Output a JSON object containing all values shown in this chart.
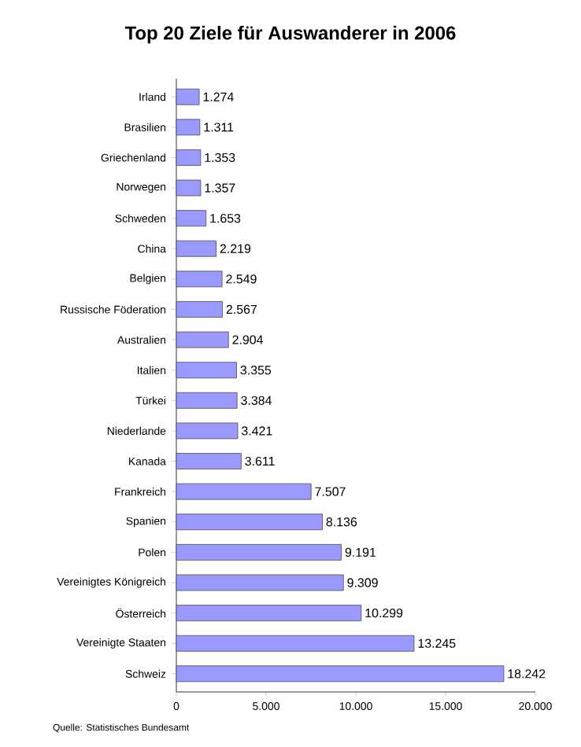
{
  "chart_data": {
    "type": "bar",
    "orientation": "horizontal",
    "title": "Top 20 Ziele für Auswanderer in 2006",
    "categories": [
      "Irland",
      "Brasilien",
      "Griechenland",
      "Norwegen",
      "Schweden",
      "China",
      "Belgien",
      "Russische Föderation",
      "Australien",
      "Italien",
      "Türkei",
      "Niederlande",
      "Kanada",
      "Frankreich",
      "Spanien",
      "Polen",
      "Vereinigtes Königreich",
      "Österreich",
      "Vereinigte Staaten",
      "Schweiz"
    ],
    "values": [
      1274,
      1311,
      1353,
      1357,
      1653,
      2219,
      2549,
      2567,
      2904,
      3355,
      3384,
      3421,
      3611,
      7507,
      8136,
      9191,
      9309,
      10299,
      13245,
      18242
    ],
    "value_labels": [
      "1.274",
      "1.311",
      "1.353",
      "1.357",
      "1.653",
      "2.219",
      "2.549",
      "2.567",
      "2.904",
      "3.355",
      "3.384",
      "3.421",
      "3.611",
      "7.507",
      "8.136",
      "9.191",
      "9.309",
      "10.299",
      "13.245",
      "18.242"
    ],
    "color": "#9999ff",
    "xlim": [
      0,
      20000
    ],
    "xticks": [
      0,
      {
        "value": 5000,
        "label": "5.000"
      },
      {
        "value": 10000,
        "label": "10.000"
      },
      {
        "value": 15000,
        "label": "15.000"
      },
      {
        "value": 20000,
        "label": "20.000"
      }
    ],
    "annotations": [
      "Quelle: Statistisches Bundesamt"
    ]
  }
}
